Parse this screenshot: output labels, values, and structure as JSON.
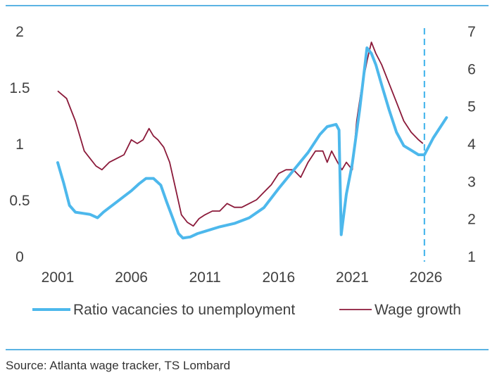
{
  "colors": {
    "rule": "#5bb3e3",
    "vacancy_line": "#4db8ec",
    "wage_line": "#8b1a3a",
    "forecast_marker": "#4db8ec",
    "text": "#404040"
  },
  "source_text": "Source: Atlanta wage tracker, TS Lombard",
  "chart_data": {
    "type": "line",
    "title": "",
    "xlabel": "",
    "ylabel": "",
    "xlim": [
      2001,
      2027.7
    ],
    "y_left_lim": [
      0,
      2
    ],
    "y_right_lim": [
      1,
      7
    ],
    "x_ticks": [
      2001,
      2006,
      2011,
      2016,
      2021,
      2026
    ],
    "x_tick_labels": [
      "2001",
      "2006",
      "2011",
      "2016",
      "2021",
      "2026"
    ],
    "y_left_ticks": [
      0,
      0.5,
      1,
      1.5,
      2
    ],
    "y_left_tick_labels": [
      "0",
      "0.5",
      "1",
      "1.5",
      "2"
    ],
    "y_right_ticks": [
      1,
      2,
      3,
      4,
      5,
      6,
      7
    ],
    "y_right_tick_labels": [
      "1",
      "2",
      "3",
      "4",
      "5",
      "6",
      "7"
    ],
    "forecast_line_x": 2025.9,
    "grid": false,
    "legend_position": "bottom",
    "series": [
      {
        "name": "Ratio vacancies to unemployment",
        "axis": "left",
        "x": [
          2001.0,
          2001.4,
          2001.8,
          2002.2,
          2002.7,
          2003.2,
          2003.7,
          2004.1,
          2004.5,
          2005.0,
          2005.5,
          2006.0,
          2006.5,
          2007.0,
          2007.5,
          2008.0,
          2008.4,
          2008.8,
          2009.2,
          2009.5,
          2010.0,
          2010.5,
          2011.0,
          2012.0,
          2013.0,
          2014.0,
          2015.0,
          2016.0,
          2017.0,
          2018.0,
          2018.8,
          2019.3,
          2019.9,
          2020.1,
          2020.25,
          2020.6,
          2021.0,
          2021.5,
          2022.0,
          2022.3,
          2022.6,
          2023.0,
          2023.5,
          2024.0,
          2024.5,
          2025.0,
          2025.5,
          2025.9,
          2026.5,
          2027.4
        ],
        "values": [
          0.83,
          0.65,
          0.45,
          0.39,
          0.38,
          0.37,
          0.34,
          0.39,
          0.43,
          0.48,
          0.53,
          0.58,
          0.64,
          0.69,
          0.69,
          0.63,
          0.48,
          0.34,
          0.2,
          0.16,
          0.17,
          0.2,
          0.22,
          0.26,
          0.29,
          0.34,
          0.43,
          0.6,
          0.76,
          0.92,
          1.08,
          1.15,
          1.17,
          1.12,
          0.19,
          0.55,
          0.82,
          1.3,
          1.85,
          1.8,
          1.7,
          1.52,
          1.3,
          1.1,
          0.98,
          0.94,
          0.9,
          0.9,
          1.05,
          1.23
        ]
      },
      {
        "name": "Wage growth",
        "axis": "right",
        "x": [
          2001.0,
          2001.3,
          2001.6,
          2001.9,
          2002.2,
          2002.5,
          2002.8,
          2003.2,
          2003.6,
          2004.0,
          2004.5,
          2005.0,
          2005.5,
          2006.0,
          2006.4,
          2006.8,
          2007.2,
          2007.5,
          2007.8,
          2008.2,
          2008.6,
          2009.0,
          2009.4,
          2009.8,
          2010.2,
          2010.6,
          2011.0,
          2011.5,
          2012.0,
          2012.5,
          2013.0,
          2013.5,
          2014.0,
          2014.5,
          2015.0,
          2015.5,
          2016.0,
          2016.5,
          2017.0,
          2017.5,
          2018.0,
          2018.5,
          2019.0,
          2019.3,
          2019.6,
          2020.0,
          2020.3,
          2020.6,
          2021.0,
          2021.3,
          2021.6,
          2022.0,
          2022.3,
          2022.6,
          2023.0,
          2023.5,
          2024.0,
          2024.5,
          2025.0,
          2025.5,
          2025.8
        ],
        "values": [
          5.4,
          5.3,
          5.2,
          4.9,
          4.6,
          4.2,
          3.8,
          3.6,
          3.4,
          3.3,
          3.5,
          3.6,
          3.7,
          4.1,
          4.0,
          4.1,
          4.4,
          4.2,
          4.1,
          3.9,
          3.5,
          2.8,
          2.1,
          1.9,
          1.8,
          2.0,
          2.1,
          2.2,
          2.2,
          2.4,
          2.3,
          2.3,
          2.4,
          2.5,
          2.7,
          2.9,
          3.2,
          3.3,
          3.3,
          3.1,
          3.5,
          3.8,
          3.8,
          3.5,
          3.8,
          3.5,
          3.3,
          3.5,
          3.3,
          4.6,
          5.4,
          6.2,
          6.7,
          6.4,
          6.1,
          5.6,
          5.1,
          4.6,
          4.3,
          4.1,
          4.0
        ]
      }
    ]
  }
}
